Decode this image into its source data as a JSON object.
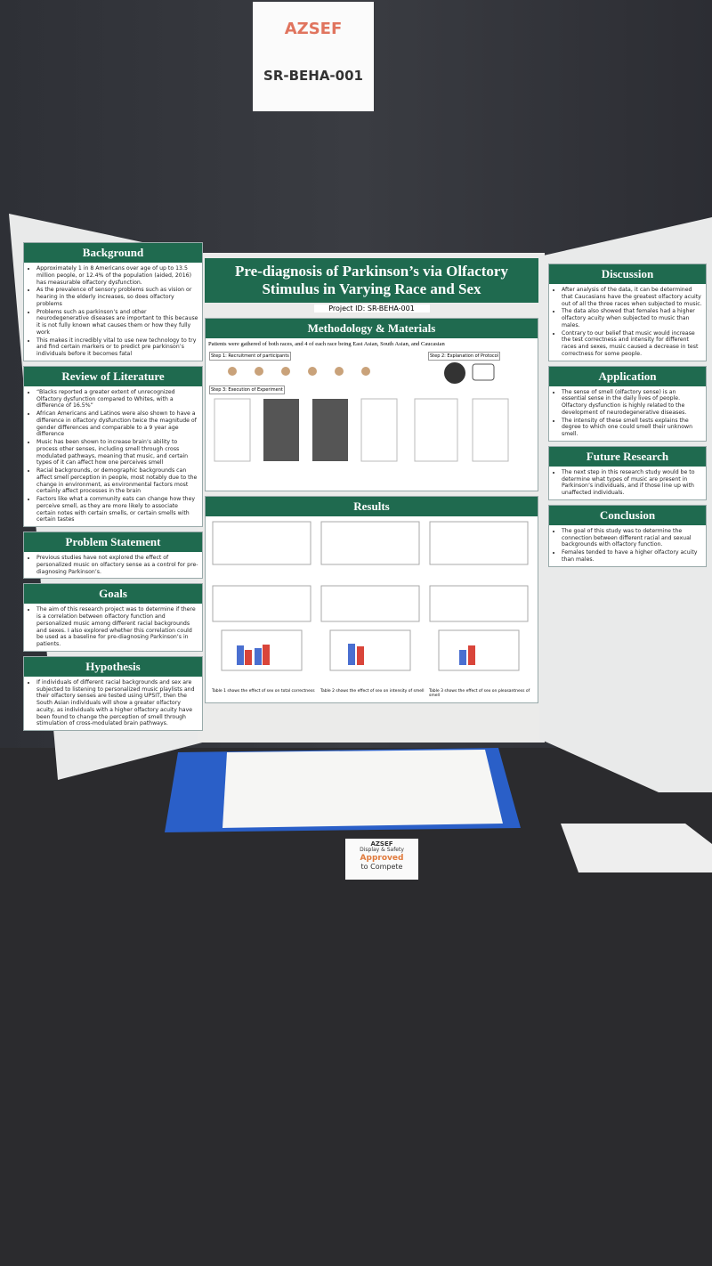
{
  "sign": {
    "logo": "AZSEF",
    "id": "SR-BEHA-001"
  },
  "poster": {
    "title": "Pre-diagnosis of Parkinson’s via Olfactory Stimulus in Varying Race and Sex",
    "project_id": "Project ID: SR-BEHA-001",
    "left": [
      {
        "heading": "Background",
        "items": [
          "Approximately 1 in 8 Americans over age of up to 13.5 million people, or 12.4% of the population (aided, 2016) has measurable olfactory dysfunction.",
          "As the prevalence of sensory problems such as vision or hearing in the elderly increases, so does olfactory problems",
          "Problems such as parkinson’s and other neurodegenerative diseases are important to this because it is not fully known what causes them or how they fully work",
          "This makes it incredibly vital to use new technology to try and find certain markers or to predict pre parkinson’s individuals before it becomes fatal"
        ]
      },
      {
        "heading": "Review of Literature",
        "items": [
          "“Blacks reported a greater extent of unrecognized Olfactory dysfunction compared to Whites, with a difference of 16.5%”",
          "African Americans and Latinos were also shown to have a difference in olfactory dysfunction twice the magnitude of gender differences and comparable to a 9 year age difference",
          "Music has been shown to increase brain’s ability to process other senses, including smell through cross modulated pathways, meaning that music, and certain types of it can affect how one perceives smell",
          "Racial backgrounds, or demographic backgrounds can affect smell perception in people, most notably due to the change in environment, as environmental factors most certainly affect processes in the brain",
          "Factors like what a community eats can change how they perceive smell, as they are more likely to associate certain notes with certain smells, or certain smells with certain tastes"
        ]
      },
      {
        "heading": "Problem Statement",
        "items": [
          "Previous studies have not explored the effect of personalized music on olfactory sense as a control for pre-diagnosing Parkinson’s."
        ]
      },
      {
        "heading": "Goals",
        "items": [
          "The aim of this research project was to determine if there is a correlation between olfactory function and personalized music among different racial backgrounds and sexes. I also explored whether this correlation could be used as a baseline for pre-diagnosing Parkinson’s in patients."
        ]
      },
      {
        "heading": "Hypothesis",
        "items": [
          "If individuals of different racial backgrounds and sex are subjected to listening to personalized music playlists and their olfactory senses are tested using UPSIT, then the South Asian individuals will show a greater olfactory acuity, as individuals with a higher olfactory acuity have been found to change the perception of smell through stimulation of cross-modulated brain pathways."
        ]
      }
    ],
    "methodology": {
      "heading": "Methodology & Materials",
      "intro": "Patients were gathered of both races, and 4 of each race being East Asian, South Asian, and Caucasian",
      "steps": [
        "Step 1: Recruitment of participants",
        "Step 2: Explanation of Protocol",
        "Step 3: Execution of Experiment"
      ]
    },
    "results": {
      "heading": "Results",
      "captions": [
        "Table 1 shows the effect of sex on total correctness",
        "Table 2 shows the effect of sex on intensity of smell",
        "Table 3 shows the effect of sex on pleasantness of smell"
      ]
    },
    "right": [
      {
        "heading": "Discussion",
        "items": [
          "After analysis of the data, it can be determined that Caucasians have the greatest olfactory acuity out of all the three races when subjected to music.",
          "The data also showed that females had a higher olfactory acuity when subjected to music than males.",
          "Contrary to our belief that music would increase the test correctness and intensity for different races and sexes, music caused a decrease in test correctness for some people."
        ]
      },
      {
        "heading": "Application",
        "items": [
          "The sense of smell (olfactory sense) is an essential sense in the daily lives of people. Olfactory dysfunction is highly related to the development of neurodegenerative diseases.",
          "The intensity of these smell tests explains the degree to which one could smell their unknown smell."
        ]
      },
      {
        "heading": "Future Research",
        "items": [
          "The next step in this research study would be to determine what types of music are present in Parkinson’s individuals, and if those line up with unaffected individuals."
        ]
      },
      {
        "heading": "Conclusion",
        "items": [
          "The goal of this study was to determine the connection between different racial and sexual backgrounds with olfactory function.",
          "Females tended to have a higher olfactory acuity than males."
        ]
      }
    ]
  },
  "badge": {
    "logo": "AZSEF",
    "line1": "Display & Safety",
    "line2": "Approved",
    "line3": "to Compete"
  }
}
